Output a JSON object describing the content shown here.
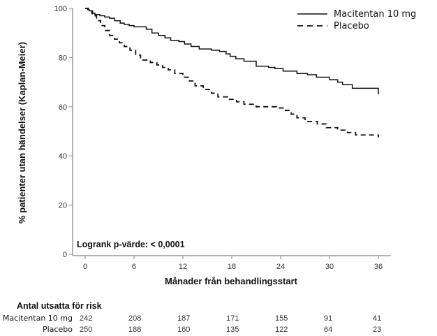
{
  "chart_data": {
    "type": "line",
    "subtype": "kaplan-meier",
    "title": "",
    "xlabel": "Månader från behandlingsstart",
    "ylabel": "% patienter utan händelser (Kaplan-Meier)",
    "xlim": [
      0,
      36
    ],
    "ylim": [
      0,
      100
    ],
    "xticks": [
      0,
      6,
      12,
      18,
      24,
      30,
      36
    ],
    "yticks": [
      0,
      20,
      40,
      60,
      80,
      100
    ],
    "grid": false,
    "legend_position": "top-right",
    "annotation": "Logrank p-värde: < 0,0001",
    "series": [
      {
        "name": "Macitentan 10 mg",
        "style": "solid",
        "x": [
          0,
          0.3,
          0.5,
          0.8,
          1.2,
          1.8,
          2.4,
          3.0,
          3.6,
          4.3,
          4.8,
          5.4,
          6.0,
          7.5,
          8.2,
          9.0,
          9.8,
          10.5,
          11.5,
          12.2,
          13.0,
          14.0,
          15.5,
          16.5,
          17.3,
          17.8,
          18.5,
          19.5,
          21.0,
          22.5,
          23.3,
          24.3,
          26.0,
          27.3,
          28.4,
          30.0,
          31.0,
          31.6,
          32.8,
          35.8,
          36.0
        ],
        "y": [
          100,
          99.5,
          99,
          98,
          97.5,
          97,
          96.5,
          96,
          95,
          94,
          93.5,
          93,
          92.5,
          91.5,
          90,
          89,
          88,
          87,
          86.5,
          85.5,
          84.5,
          83.5,
          83,
          82.5,
          81.5,
          80.5,
          79.5,
          78.5,
          76.5,
          76,
          75.5,
          74.5,
          73.5,
          73,
          72,
          71,
          70,
          69,
          67.5,
          67.5,
          65
        ]
      },
      {
        "name": "Placebo",
        "style": "dashed",
        "x": [
          0,
          0.4,
          0.9,
          1.4,
          1.9,
          2.4,
          3.0,
          3.6,
          4.2,
          4.8,
          5.5,
          6.2,
          6.8,
          8.0,
          8.8,
          9.5,
          10.2,
          11.0,
          12.0,
          12.8,
          13.5,
          14.5,
          15.5,
          16.3,
          17.5,
          18.6,
          19.5,
          21.0,
          23.5,
          24.3,
          25.3,
          26.0,
          27.0,
          28.5,
          29.6,
          31.0,
          32.2,
          33.2,
          36.0
        ],
        "y": [
          100,
          99,
          97,
          95,
          93,
          91,
          89,
          87.5,
          86,
          84.5,
          83,
          81,
          79,
          78,
          77,
          76,
          75,
          73.5,
          72,
          70.5,
          68.5,
          67,
          65.5,
          64,
          63,
          62,
          61,
          60,
          59.5,
          58.5,
          57,
          55.5,
          54,
          53,
          51.5,
          50.5,
          49.5,
          48.5,
          47.5
        ]
      }
    ],
    "risk_table": {
      "title": "Antal utsatta för risk",
      "timepoints": [
        0,
        6,
        12,
        18,
        24,
        30,
        36
      ],
      "rows": [
        {
          "label": "Macitentan 10 mg",
          "values": [
            242,
            208,
            187,
            171,
            155,
            91,
            41
          ]
        },
        {
          "label": "Placebo",
          "values": [
            250,
            188,
            160,
            135,
            122,
            64,
            23
          ]
        }
      ]
    }
  },
  "colors": {
    "line": "#111111",
    "axis": "#9a9a9a"
  }
}
